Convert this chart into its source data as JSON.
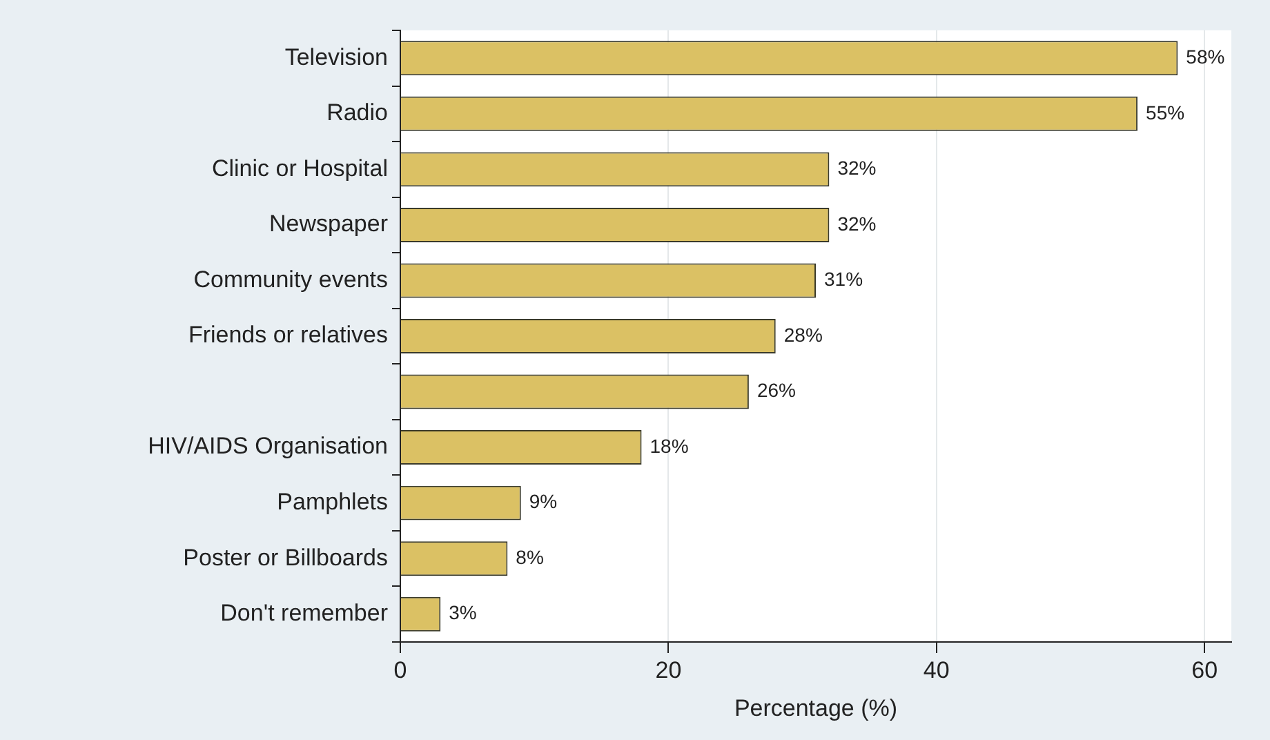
{
  "chart_data": {
    "type": "bar",
    "orientation": "horizontal",
    "xlabel": "Percentage (%)",
    "categories": [
      "Television",
      "Radio",
      "Clinic or Hospital",
      "Newspaper",
      "Community events",
      "Friends or relatives",
      null,
      "HIV/AIDS Organisation",
      "Pamphlets",
      "Poster or Billboards",
      "Don't remember"
    ],
    "values": [
      58,
      55,
      32,
      32,
      31,
      28,
      26,
      18,
      9,
      8,
      3
    ],
    "value_labels": [
      "58%",
      "55%",
      "32%",
      "32%",
      "31%",
      "28%",
      "26%",
      "18%",
      "9%",
      "8%",
      "3%"
    ],
    "color": "#dbc164",
    "xlim": [
      0,
      62
    ],
    "xticks": [
      0,
      20,
      40,
      60
    ],
    "grid": "x",
    "legend": false
  }
}
